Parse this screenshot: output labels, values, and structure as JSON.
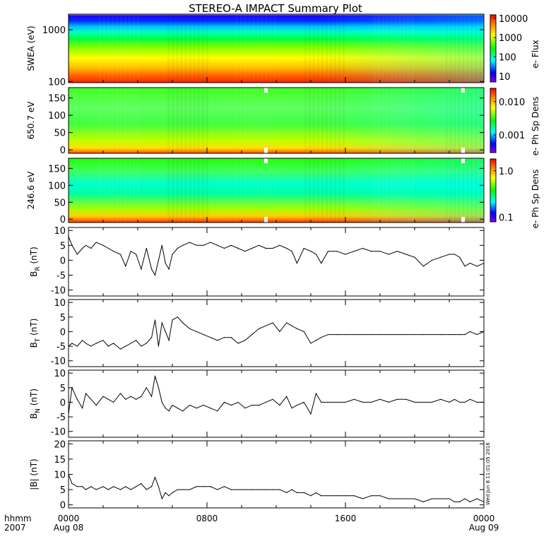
{
  "title": "STEREO-A IMPACT Summary Plot",
  "stamp": "Wed Jun  8 11:01:05 2016",
  "x_axis": {
    "start": "2007-08-08T00:00",
    "end": "2007-08-09T00:00",
    "row_label": "hhmm",
    "year": "2007",
    "ticks": [
      {
        "time": "2007-08-08T00:00",
        "label": "0000",
        "sublabel": "Aug 08"
      },
      {
        "time": "2007-08-08T08:00",
        "label": "0800",
        "sublabel": ""
      },
      {
        "time": "2007-08-08T16:00",
        "label": "1600",
        "sublabel": ""
      },
      {
        "time": "2007-08-09T00:00",
        "label": "0000",
        "sublabel": "Aug 09"
      }
    ]
  },
  "spectrograms": [
    {
      "ylabel": "SWEA (eV)",
      "yscale": "log",
      "ylim": [
        95,
        2000
      ],
      "yticks": [
        {
          "v": 100,
          "label": "100"
        },
        {
          "v": 1000,
          "label": "1000"
        }
      ],
      "cbar_label": "e- Flux",
      "cbar_scale": "log",
      "cbar_range": [
        5,
        15000
      ],
      "cbar_ticks": [
        {
          "v": 10,
          "label": "10"
        },
        {
          "v": 100,
          "label": "100"
        },
        {
          "v": 1000,
          "label": "1000"
        },
        {
          "v": 10000,
          "label": "10000"
        }
      ],
      "colors": [
        "#ff0000",
        "#ff8000",
        "#ffff00",
        "#00ff00",
        "#00ffff",
        "#0000ff",
        "#8000ff",
        "#ffffff"
      ]
    },
    {
      "ylabel": "650.7 eV",
      "yscale": "linear",
      "ylim": [
        -10,
        180
      ],
      "yticks": [
        {
          "v": 0,
          "label": "0"
        },
        {
          "v": 50,
          "label": "50"
        },
        {
          "v": 100,
          "label": "100"
        },
        {
          "v": 150,
          "label": "150"
        }
      ],
      "cbar_label": "e- Ph Sp Dens",
      "cbar_scale": "log",
      "cbar_range": [
        0.0003,
        0.025
      ],
      "cbar_ticks": [
        {
          "v": 0.001,
          "label": "0.001"
        },
        {
          "v": 0.01,
          "label": "0.010"
        }
      ],
      "colors": [
        "#ff0000",
        "#ff8000",
        "#ffff00",
        "#00ff00",
        "#00ffff",
        "#0000ff",
        "#8000ff"
      ]
    },
    {
      "ylabel": "246.6 eV",
      "yscale": "linear",
      "ylim": [
        -10,
        180
      ],
      "yticks": [
        {
          "v": 0,
          "label": "0"
        },
        {
          "v": 50,
          "label": "50"
        },
        {
          "v": 100,
          "label": "100"
        },
        {
          "v": 150,
          "label": "150"
        }
      ],
      "cbar_label": "e- Ph Sp Dens",
      "cbar_scale": "log",
      "cbar_range": [
        0.08,
        1.8
      ],
      "cbar_ticks": [
        {
          "v": 0.1,
          "label": "0.1"
        },
        {
          "v": 1.0,
          "label": "1.0"
        }
      ],
      "colors": [
        "#ff0000",
        "#ff8000",
        "#ffff00",
        "#00ff00",
        "#00ffff",
        "#0000ff",
        "#8000ff"
      ]
    }
  ],
  "chart_data": [
    {
      "type": "line",
      "ylabel": "B_R (nT)",
      "ylabel_main": "B",
      "ylabel_sub": "R",
      "ylabel_unit": "(nT)",
      "ylim": [
        -12,
        11
      ],
      "yticks": [
        -10,
        -5,
        0,
        5,
        10
      ],
      "x_hours": [
        0,
        0.2,
        0.5,
        0.8,
        1.0,
        1.3,
        1.6,
        2.0,
        2.3,
        2.6,
        3.0,
        3.3,
        3.6,
        3.9,
        4.2,
        4.5,
        4.8,
        5.0,
        5.2,
        5.4,
        5.6,
        5.8,
        6.0,
        6.3,
        6.6,
        7.0,
        7.4,
        7.8,
        8.2,
        8.6,
        9.0,
        9.4,
        9.8,
        10.2,
        10.6,
        11.0,
        11.4,
        11.8,
        12.2,
        12.6,
        12.9,
        13.2,
        13.6,
        14.0,
        14.3,
        14.6,
        15.0,
        15.5,
        16.0,
        16.5,
        17.0,
        17.5,
        18.0,
        18.5,
        19.0,
        19.5,
        20.0,
        20.5,
        21.0,
        21.5,
        22.0,
        22.3,
        22.6,
        22.9,
        23.2,
        23.6,
        24.0
      ],
      "values": [
        8,
        5,
        2,
        4,
        5,
        4,
        6,
        5,
        4,
        3,
        2,
        -2,
        3,
        2,
        -3,
        4,
        -3,
        -5,
        0,
        5,
        -1,
        -3,
        2,
        4,
        5,
        6,
        5,
        5,
        6,
        5,
        4,
        5,
        4,
        3,
        4,
        5,
        4,
        4,
        5,
        4,
        3,
        -1,
        4,
        3,
        2,
        -1,
        3,
        3,
        2,
        3,
        4,
        3,
        3,
        2,
        3,
        2,
        1,
        -2,
        0,
        1,
        2,
        2,
        1,
        -2,
        -1,
        -2,
        -1
      ]
    },
    {
      "type": "line",
      "ylabel": "B_T (nT)",
      "ylabel_main": "B",
      "ylabel_sub": "T",
      "ylabel_unit": "(nT)",
      "ylim": [
        -12,
        11
      ],
      "yticks": [
        -10,
        -5,
        0,
        5,
        10
      ],
      "x_hours": [
        0,
        0.2,
        0.5,
        0.8,
        1.0,
        1.3,
        1.6,
        2.0,
        2.3,
        2.6,
        3.0,
        3.3,
        3.6,
        3.9,
        4.2,
        4.5,
        4.8,
        5.0,
        5.2,
        5.4,
        5.6,
        5.8,
        6.0,
        6.3,
        6.6,
        7.0,
        7.4,
        7.8,
        8.2,
        8.6,
        9.0,
        9.4,
        9.8,
        10.2,
        10.6,
        11.0,
        11.4,
        11.8,
        12.2,
        12.6,
        12.9,
        13.2,
        13.6,
        14.0,
        14.3,
        14.6,
        15.0,
        15.5,
        16.0,
        16.5,
        17.0,
        17.5,
        18.0,
        18.5,
        19.0,
        19.5,
        20.0,
        20.5,
        21.0,
        21.5,
        22.0,
        22.3,
        22.6,
        22.9,
        23.2,
        23.6,
        24.0
      ],
      "values": [
        -5,
        -4,
        -5,
        -3,
        -4,
        -5,
        -4,
        -3,
        -5,
        -4,
        -6,
        -5,
        -4,
        -3,
        -5,
        -4,
        -2,
        4,
        -5,
        3,
        0,
        -3,
        4,
        5,
        3,
        1,
        0,
        -1,
        -2,
        -3,
        -2,
        -2,
        -4,
        -3,
        -1,
        1,
        2,
        3,
        0,
        3,
        2,
        1,
        0,
        -4,
        -3,
        -2,
        -1,
        -1,
        -1,
        -1,
        -1,
        -1,
        -1,
        -1,
        -1,
        -1,
        -1,
        -1,
        -1,
        -1,
        -1,
        -1,
        -1,
        -1,
        0,
        -1,
        0
      ]
    },
    {
      "type": "line",
      "ylabel": "B_N (nT)",
      "ylabel_main": "B",
      "ylabel_sub": "N",
      "ylabel_unit": "(nT)",
      "ylim": [
        -12,
        11
      ],
      "yticks": [
        -10,
        -5,
        0,
        5,
        10
      ],
      "x_hours": [
        0,
        0.2,
        0.5,
        0.8,
        1.0,
        1.3,
        1.6,
        2.0,
        2.3,
        2.6,
        3.0,
        3.3,
        3.6,
        3.9,
        4.2,
        4.5,
        4.8,
        5.0,
        5.2,
        5.4,
        5.6,
        5.8,
        6.0,
        6.3,
        6.6,
        7.0,
        7.4,
        7.8,
        8.2,
        8.6,
        9.0,
        9.4,
        9.8,
        10.2,
        10.6,
        11.0,
        11.4,
        11.8,
        12.2,
        12.6,
        12.9,
        13.2,
        13.6,
        14.0,
        14.3,
        14.6,
        15.0,
        15.5,
        16.0,
        16.5,
        17.0,
        17.5,
        18.0,
        18.5,
        19.0,
        19.5,
        20.0,
        20.5,
        21.0,
        21.5,
        22.0,
        22.3,
        22.6,
        22.9,
        23.2,
        23.6,
        24.0
      ],
      "values": [
        -4,
        5,
        1,
        -2,
        3,
        1,
        -1,
        2,
        1,
        0,
        3,
        1,
        2,
        1,
        2,
        5,
        2,
        9,
        5,
        0,
        -2,
        -3,
        -1,
        -2,
        -3,
        -1,
        -2,
        -1,
        -2,
        -3,
        0,
        -1,
        0,
        -2,
        -1,
        -1,
        0,
        1,
        -1,
        2,
        -2,
        -1,
        0,
        -4,
        3,
        0,
        0,
        0,
        0,
        1,
        0,
        0,
        1,
        0,
        1,
        1,
        0,
        0,
        0,
        1,
        0,
        1,
        0,
        0,
        1,
        0,
        0
      ]
    },
    {
      "type": "line",
      "ylabel": "|B| (nT)",
      "ylabel_main": "|B|",
      "ylabel_sub": "",
      "ylabel_unit": "(nT)",
      "ylim": [
        -1,
        21
      ],
      "yticks": [
        0,
        5,
        10,
        15,
        20
      ],
      "x_hours": [
        0,
        0.2,
        0.5,
        0.8,
        1.0,
        1.3,
        1.6,
        2.0,
        2.3,
        2.6,
        3.0,
        3.3,
        3.6,
        3.9,
        4.2,
        4.5,
        4.8,
        5.0,
        5.2,
        5.4,
        5.6,
        5.8,
        6.0,
        6.3,
        6.6,
        7.0,
        7.4,
        7.8,
        8.2,
        8.6,
        9.0,
        9.4,
        9.8,
        10.2,
        10.6,
        11.0,
        11.4,
        11.8,
        12.2,
        12.6,
        12.9,
        13.2,
        13.6,
        14.0,
        14.3,
        14.6,
        15.0,
        15.5,
        16.0,
        16.5,
        17.0,
        17.5,
        18.0,
        18.5,
        19.0,
        19.5,
        20.0,
        20.5,
        21.0,
        21.5,
        22.0,
        22.3,
        22.6,
        22.9,
        23.2,
        23.6,
        24.0
      ],
      "values": [
        10,
        7,
        6,
        6,
        5,
        6,
        5,
        6,
        5,
        6,
        5,
        6,
        5,
        6,
        7,
        5,
        6,
        9,
        6,
        2,
        4,
        3,
        4,
        5,
        5,
        5,
        6,
        6,
        6,
        5,
        6,
        5,
        5,
        5,
        5,
        5,
        5,
        5,
        5,
        4,
        5,
        4,
        4,
        3,
        4,
        3,
        3,
        3,
        3,
        3,
        2,
        3,
        3,
        2,
        2,
        2,
        2,
        1,
        2,
        2,
        2,
        1,
        1,
        2,
        1,
        2,
        1
      ]
    }
  ]
}
